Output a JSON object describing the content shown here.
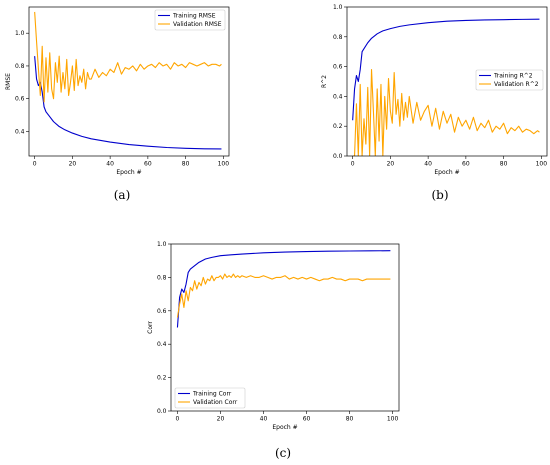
{
  "colors": {
    "training": "#0000cc",
    "validation": "#ffa500"
  },
  "chart_data": [
    {
      "type": "line",
      "caption": "(a)",
      "xlabel": "Epoch #",
      "ylabel": "RMSE",
      "xlim": [
        -3,
        103
      ],
      "ylim": [
        0.25,
        1.16
      ],
      "xticks": [
        0,
        20,
        40,
        60,
        80,
        100
      ],
      "yticks": [
        0.4,
        0.6,
        0.8,
        1.0
      ],
      "xtick_labels": [
        "0",
        "20",
        "40",
        "60",
        "80",
        "100"
      ],
      "ytick_labels": [
        "0.4",
        "0.6",
        "0.8",
        "1.0"
      ],
      "grid": false,
      "legend": "upper-right",
      "series": [
        {
          "name": "Training RMSE",
          "x": [
            0,
            1,
            2,
            3,
            4,
            5,
            6,
            8,
            10,
            13,
            16,
            20,
            25,
            30,
            40,
            50,
            60,
            70,
            80,
            90,
            99
          ],
          "y": [
            0.86,
            0.72,
            0.68,
            0.7,
            0.64,
            0.55,
            0.52,
            0.49,
            0.46,
            0.43,
            0.41,
            0.39,
            0.37,
            0.355,
            0.335,
            0.32,
            0.31,
            0.302,
            0.297,
            0.294,
            0.293
          ]
        },
        {
          "name": "Validation RMSE",
          "x": [
            0,
            1,
            2,
            3,
            4,
            5,
            6,
            7,
            8,
            9,
            10,
            11,
            12,
            13,
            14,
            15,
            16,
            17,
            18,
            19,
            20,
            21,
            22,
            23,
            24,
            25,
            26,
            27,
            28,
            29,
            30,
            32,
            34,
            36,
            38,
            40,
            42,
            44,
            46,
            48,
            50,
            52,
            54,
            56,
            58,
            60,
            62,
            64,
            66,
            68,
            70,
            72,
            74,
            76,
            78,
            80,
            82,
            84,
            86,
            88,
            90,
            92,
            94,
            96,
            98,
            99
          ],
          "y": [
            1.13,
            0.95,
            0.78,
            0.62,
            0.92,
            0.58,
            0.85,
            0.64,
            0.88,
            0.66,
            0.6,
            0.82,
            0.7,
            0.86,
            0.64,
            0.76,
            0.66,
            0.84,
            0.62,
            0.7,
            0.8,
            0.65,
            0.84,
            0.68,
            0.74,
            0.7,
            0.78,
            0.66,
            0.76,
            0.72,
            0.72,
            0.78,
            0.73,
            0.76,
            0.74,
            0.78,
            0.76,
            0.82,
            0.75,
            0.79,
            0.78,
            0.8,
            0.77,
            0.81,
            0.78,
            0.8,
            0.81,
            0.79,
            0.82,
            0.8,
            0.81,
            0.78,
            0.82,
            0.8,
            0.81,
            0.79,
            0.82,
            0.81,
            0.8,
            0.81,
            0.82,
            0.8,
            0.81,
            0.81,
            0.8,
            0.81
          ]
        }
      ]
    },
    {
      "type": "line",
      "caption": "(b)",
      "xlabel": "Epoch #",
      "ylabel": "R^2",
      "xlim": [
        -3,
        103
      ],
      "ylim": [
        0.0,
        1.0
      ],
      "xticks": [
        0,
        20,
        40,
        60,
        80,
        100
      ],
      "yticks": [
        0.0,
        0.2,
        0.4,
        0.6,
        0.8,
        1.0
      ],
      "xtick_labels": [
        "0",
        "20",
        "40",
        "60",
        "80",
        "100"
      ],
      "ytick_labels": [
        "0.0",
        "0.2",
        "0.4",
        "0.6",
        "0.8",
        "1.0"
      ],
      "grid": false,
      "legend": "center-right",
      "series": [
        {
          "name": "Training R^2",
          "x": [
            0,
            1,
            2,
            3,
            4,
            5,
            6,
            8,
            10,
            13,
            16,
            20,
            25,
            30,
            40,
            50,
            60,
            70,
            80,
            90,
            99
          ],
          "y": [
            0.24,
            0.45,
            0.54,
            0.5,
            0.58,
            0.7,
            0.72,
            0.76,
            0.79,
            0.82,
            0.84,
            0.855,
            0.87,
            0.88,
            0.895,
            0.905,
            0.91,
            0.913,
            0.915,
            0.917,
            0.918
          ]
        },
        {
          "name": "Validation R^2",
          "x": [
            0,
            1,
            2,
            3,
            4,
            5,
            6,
            7,
            8,
            9,
            10,
            11,
            12,
            13,
            14,
            15,
            16,
            17,
            18,
            19,
            20,
            21,
            22,
            23,
            24,
            25,
            26,
            27,
            28,
            29,
            30,
            32,
            34,
            36,
            38,
            40,
            42,
            44,
            46,
            48,
            50,
            52,
            54,
            56,
            58,
            60,
            62,
            64,
            66,
            68,
            70,
            72,
            74,
            76,
            78,
            80,
            82,
            84,
            86,
            88,
            90,
            92,
            94,
            96,
            98,
            99
          ],
          "y": [
            0.0,
            0.0,
            0.35,
            0.0,
            0.48,
            0.0,
            0.25,
            0.08,
            0.46,
            0.0,
            0.58,
            0.3,
            0.0,
            0.45,
            0.1,
            0.48,
            0.0,
            0.4,
            0.18,
            0.52,
            0.3,
            0.22,
            0.56,
            0.28,
            0.38,
            0.2,
            0.42,
            0.24,
            0.36,
            0.26,
            0.4,
            0.22,
            0.36,
            0.24,
            0.3,
            0.34,
            0.2,
            0.32,
            0.18,
            0.3,
            0.22,
            0.28,
            0.16,
            0.26,
            0.2,
            0.24,
            0.18,
            0.26,
            0.17,
            0.22,
            0.19,
            0.24,
            0.16,
            0.2,
            0.18,
            0.22,
            0.15,
            0.19,
            0.17,
            0.2,
            0.16,
            0.18,
            0.17,
            0.15,
            0.17,
            0.16
          ]
        }
      ]
    },
    {
      "type": "line",
      "caption": "(c)",
      "xlabel": "Epoch #",
      "ylabel": "Corr",
      "xlim": [
        -3,
        103
      ],
      "ylim": [
        0.0,
        1.0
      ],
      "xticks": [
        0,
        20,
        40,
        60,
        80,
        100
      ],
      "yticks": [
        0.0,
        0.2,
        0.4,
        0.6,
        0.8,
        1.0
      ],
      "xtick_labels": [
        "0",
        "20",
        "40",
        "60",
        "80",
        "100"
      ],
      "ytick_labels": [
        "0.0",
        "0.2",
        "0.4",
        "0.6",
        "0.8",
        "1.0"
      ],
      "grid": false,
      "legend": "lower-left",
      "series": [
        {
          "name": "Training Corr",
          "x": [
            0,
            1,
            2,
            3,
            4,
            5,
            6,
            8,
            10,
            13,
            16,
            20,
            25,
            30,
            40,
            50,
            60,
            70,
            80,
            90,
            99
          ],
          "y": [
            0.5,
            0.68,
            0.73,
            0.71,
            0.76,
            0.83,
            0.85,
            0.87,
            0.89,
            0.91,
            0.92,
            0.93,
            0.935,
            0.94,
            0.947,
            0.952,
            0.955,
            0.957,
            0.958,
            0.959,
            0.96
          ]
        },
        {
          "name": "Validation Corr",
          "x": [
            0,
            1,
            2,
            3,
            4,
            5,
            6,
            7,
            8,
            9,
            10,
            11,
            12,
            13,
            14,
            15,
            16,
            17,
            18,
            19,
            20,
            21,
            22,
            23,
            24,
            25,
            26,
            27,
            28,
            29,
            30,
            32,
            34,
            36,
            38,
            40,
            42,
            44,
            46,
            48,
            50,
            52,
            54,
            56,
            58,
            60,
            62,
            64,
            66,
            68,
            70,
            72,
            74,
            76,
            78,
            80,
            82,
            84,
            86,
            88,
            90,
            92,
            94,
            96,
            98,
            99
          ],
          "y": [
            0.56,
            0.64,
            0.7,
            0.62,
            0.72,
            0.66,
            0.74,
            0.72,
            0.78,
            0.73,
            0.77,
            0.75,
            0.8,
            0.76,
            0.79,
            0.78,
            0.81,
            0.78,
            0.8,
            0.8,
            0.81,
            0.79,
            0.82,
            0.8,
            0.81,
            0.8,
            0.82,
            0.8,
            0.81,
            0.8,
            0.81,
            0.8,
            0.81,
            0.8,
            0.8,
            0.81,
            0.8,
            0.79,
            0.8,
            0.8,
            0.81,
            0.79,
            0.8,
            0.79,
            0.8,
            0.79,
            0.8,
            0.79,
            0.78,
            0.79,
            0.79,
            0.8,
            0.79,
            0.79,
            0.78,
            0.79,
            0.79,
            0.79,
            0.78,
            0.79,
            0.79,
            0.79,
            0.79,
            0.79,
            0.79,
            0.79
          ]
        }
      ]
    }
  ]
}
